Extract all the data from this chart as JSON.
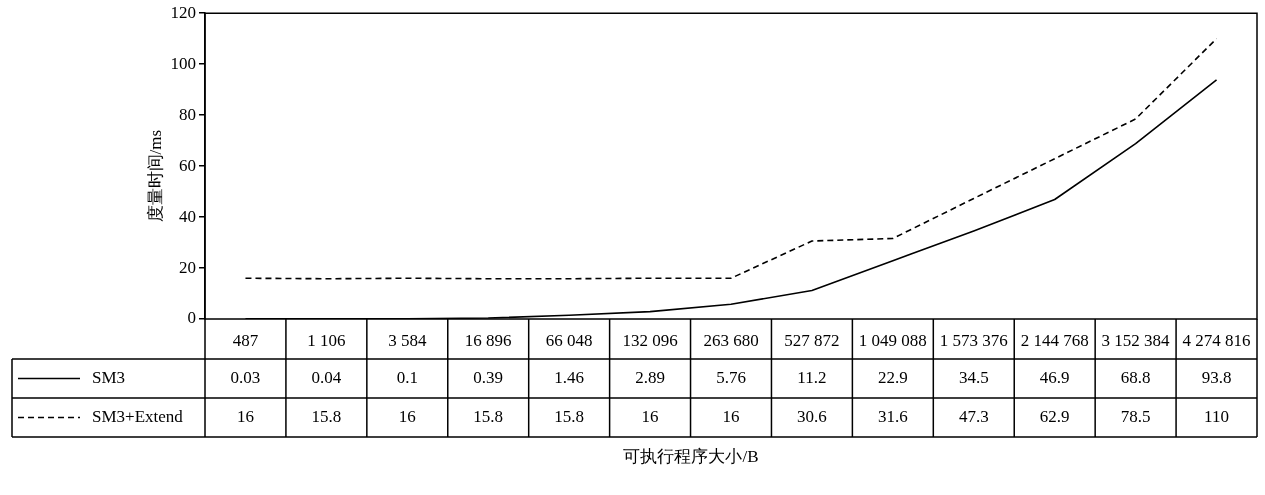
{
  "chart_data": {
    "type": "line",
    "annotations": [
      "可执行程序大小/B"
    ],
    "ylabel": "度量时间/ms",
    "categories": [
      "487",
      "1 106",
      "3 584",
      "16 896",
      "66 048",
      "132 096",
      "263 680",
      "527 872",
      "1 049 088",
      "1 573 376",
      "2 144 768",
      "3 152 384",
      "4 274 816"
    ],
    "series": [
      {
        "name": "SM3",
        "color": "#000000",
        "line_style": "solid",
        "values": [
          0.03,
          0.04,
          0.1,
          0.39,
          1.46,
          2.89,
          5.76,
          11.2,
          22.9,
          34.5,
          46.9,
          68.8,
          93.8
        ]
      },
      {
        "name": "SM3+Extend",
        "color": "#000000",
        "line_style": "dashed",
        "values": [
          16,
          15.8,
          16,
          15.8,
          15.8,
          16,
          16,
          30.6,
          31.6,
          47.3,
          62.9,
          78.5,
          110
        ]
      }
    ],
    "ylim": [
      0,
      120
    ],
    "yticks": [
      0,
      20,
      40,
      60,
      80,
      100,
      120
    ],
    "grid": false,
    "legend": "bottom left",
    "marker": "none",
    "data_labels": true
  }
}
